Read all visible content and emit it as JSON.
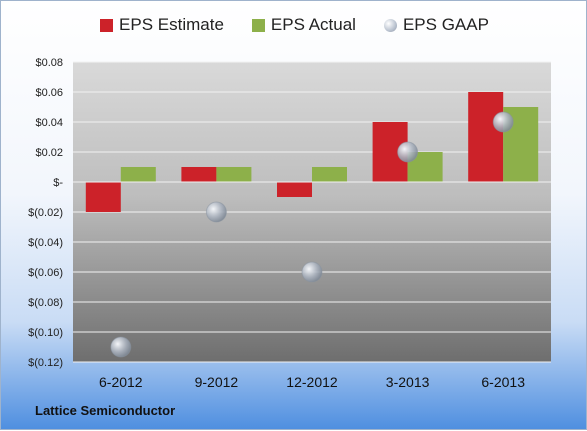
{
  "chart_data": {
    "type": "bar",
    "categories": [
      "6-2012",
      "9-2012",
      "12-2012",
      "3-2013",
      "6-2013"
    ],
    "series": [
      {
        "name": "EPS Estimate",
        "type": "bar",
        "color": "#cc2229",
        "values": [
          -0.02,
          0.01,
          -0.01,
          0.04,
          0.06
        ]
      },
      {
        "name": "EPS Actual",
        "type": "bar",
        "color": "#8db04a",
        "values": [
          0.01,
          0.01,
          0.01,
          0.02,
          0.05
        ]
      },
      {
        "name": "EPS GAAP",
        "type": "bubble",
        "color": "#b5bdc8",
        "values": [
          -0.11,
          -0.02,
          -0.06,
          0.02,
          0.04
        ]
      }
    ],
    "y_ticks": [
      0.08,
      0.06,
      0.04,
      0.02,
      0,
      -0.02,
      -0.04,
      -0.06,
      -0.08,
      -0.1,
      -0.12
    ],
    "y_tick_labels": [
      "$0.08",
      "$0.06",
      "$0.04",
      "$0.02",
      "$-",
      "$(0.02)",
      "$(0.04)",
      "$(0.06)",
      "$(0.08)",
      "$(0.10)",
      "$(0.12)"
    ],
    "ylim": [
      -0.12,
      0.08
    ],
    "grid": true,
    "legend_position": "top"
  },
  "footer": {
    "source": "Lattice Semiconductor"
  }
}
